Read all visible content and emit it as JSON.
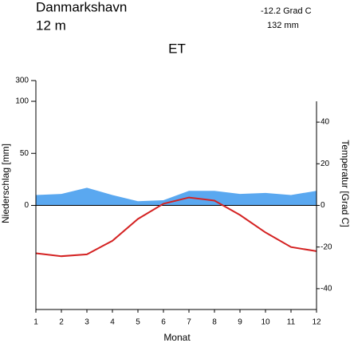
{
  "chart_data": {
    "type": "climate",
    "station": "Danmarkshavn",
    "elevation": "12  m",
    "mean_temperature": "-12.2 Grad C",
    "annual_precipitation": "132 mm",
    "title": "ET",
    "y_label": "Niederschlag [mm]",
    "y2_label": "Temperatur [Grad C]",
    "x_label": "Monat",
    "x": [
      1,
      2,
      3,
      4,
      5,
      6,
      7,
      8,
      9,
      10,
      11,
      12
    ],
    "xlim": [
      1,
      12
    ],
    "xticks": [
      1,
      2,
      3,
      4,
      5,
      6,
      7,
      8,
      9,
      10,
      11,
      12
    ],
    "ylim": [
      -100,
      300
    ],
    "yticks": [
      0,
      50,
      100,
      300
    ],
    "y2lim": [
      -50,
      50
    ],
    "y2ticks": [
      -40,
      -20,
      0,
      20,
      40
    ],
    "series": [
      {
        "name": "Niederschlag",
        "color": "#5aa8f0",
        "values": [
          10,
          11,
          17,
          10,
          4,
          5,
          14,
          14,
          11,
          12,
          10,
          14
        ]
      },
      {
        "name": "Temperatur",
        "color": "#d42222",
        "axis": "y2",
        "values": [
          -23,
          -24.4,
          -23.5,
          -17,
          -6.5,
          0.8,
          3.8,
          2.3,
          -4.6,
          -13,
          -20,
          -22
        ]
      }
    ]
  }
}
